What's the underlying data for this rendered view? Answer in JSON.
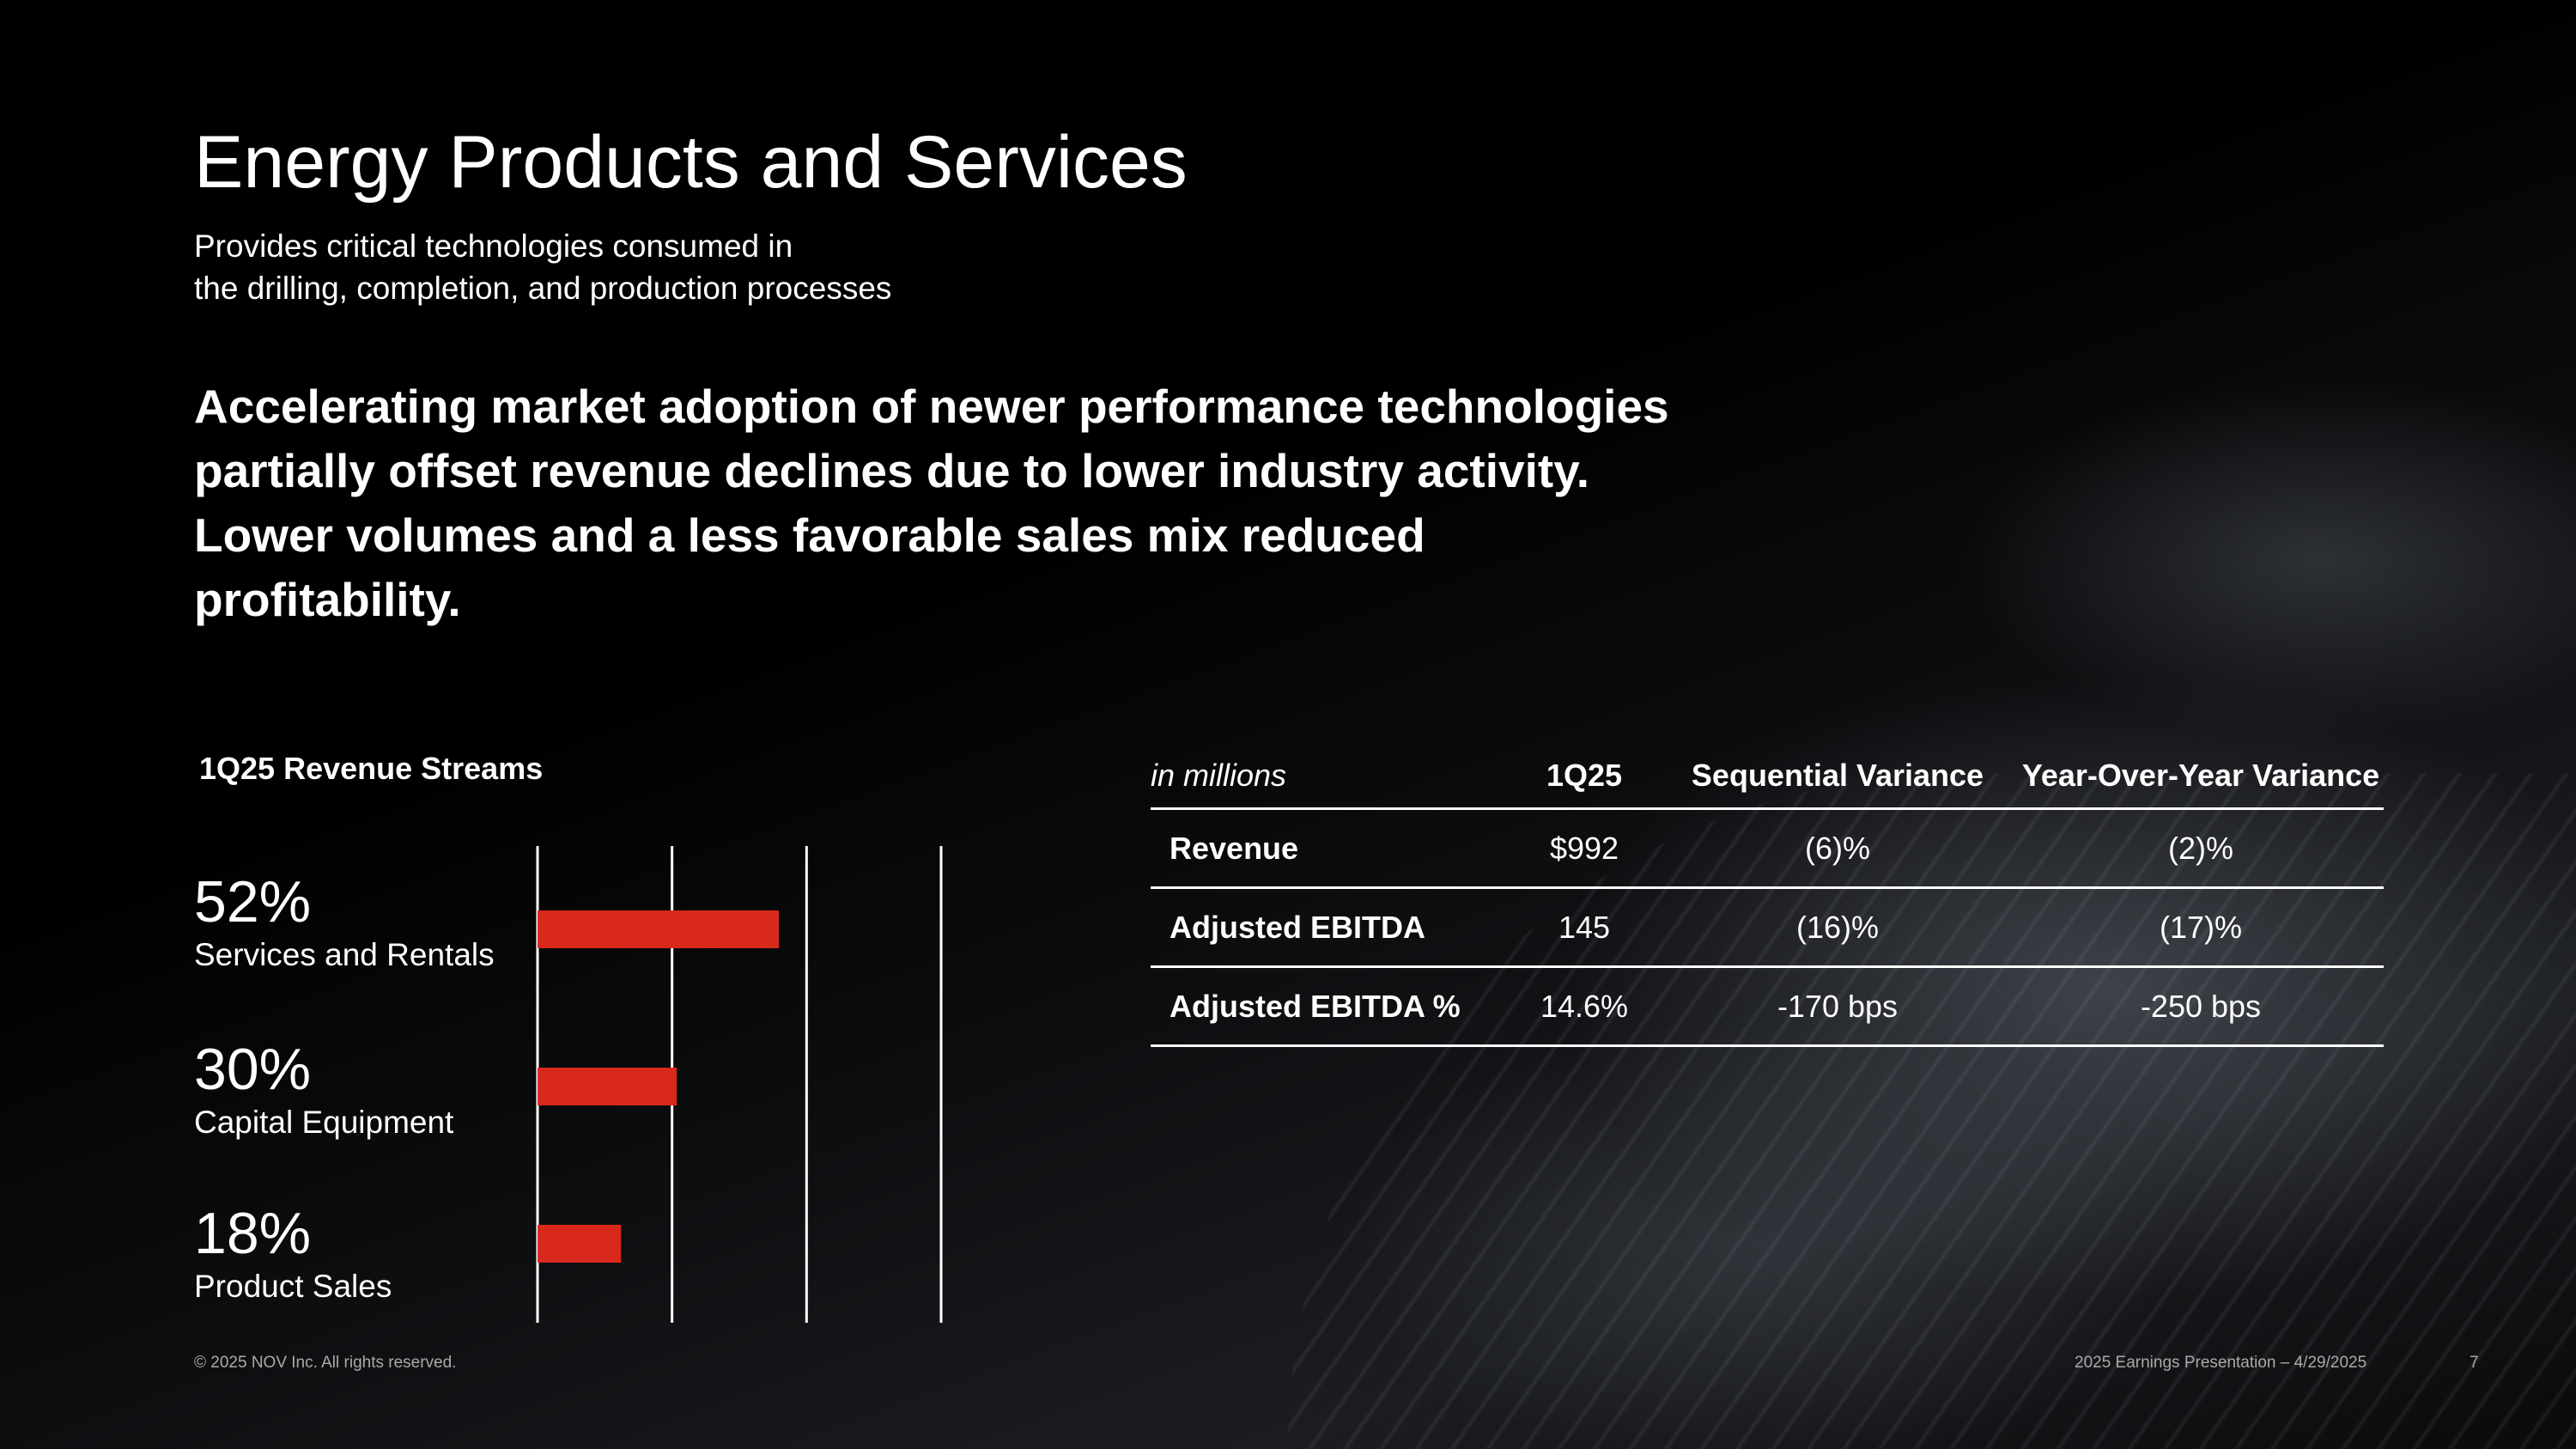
{
  "slide": {
    "title": "Energy Products and Services",
    "subtitle_line1": "Provides critical technologies consumed in",
    "subtitle_line2": "the drilling, completion, and production processes",
    "headline": "Accelerating market adoption of newer performance technologies partially offset revenue declines due to lower industry activity. Lower volumes and a less favorable sales mix reduced profitability."
  },
  "revenue_streams": {
    "title": "1Q25 Revenue Streams",
    "items": [
      {
        "percent": "52%",
        "label": "Services and Rentals"
      },
      {
        "percent": "30%",
        "label": "Capital Equipment"
      },
      {
        "percent": "18%",
        "label": "Product Sales"
      }
    ]
  },
  "chart_data": {
    "type": "bar",
    "orientation": "horizontal",
    "title": "1Q25 Revenue Streams",
    "categories": [
      "Services and Rentals",
      "Capital Equipment",
      "Product Sales"
    ],
    "values": [
      52,
      30,
      18
    ],
    "unit": "%",
    "xlim": [
      0,
      60
    ],
    "grid": true,
    "bar_color": "#d9291c"
  },
  "table": {
    "unit_label": "in millions",
    "headers": [
      "1Q25",
      "Sequential Variance",
      "Year-Over-Year Variance"
    ],
    "rows": [
      {
        "label": "Revenue",
        "cells": [
          "$992",
          "(6)%",
          "(2)%"
        ]
      },
      {
        "label": "Adjusted EBITDA",
        "cells": [
          "145",
          "(16)%",
          "(17)%"
        ]
      },
      {
        "label": "Adjusted EBITDA %",
        "cells": [
          "14.6%",
          "-170 bps",
          "-250 bps"
        ]
      }
    ]
  },
  "footer": {
    "copyright": "© 2025 NOV Inc. All rights reserved.",
    "presentation": "2025 Earnings Presentation – 4/29/2025",
    "page_number": "7"
  },
  "colors": {
    "background": "#000000",
    "text": "#ffffff",
    "accent": "#d9291c",
    "footer": "#aaaaaa"
  }
}
